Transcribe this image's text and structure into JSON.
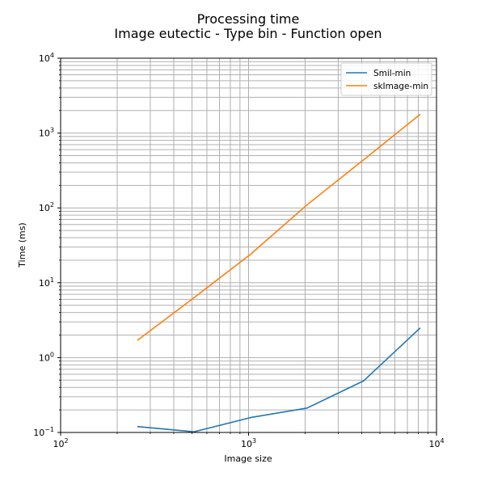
{
  "chart_data": {
    "type": "line",
    "title": "Processing time",
    "subtitle": "Image eutectic - Type bin - Function open",
    "xlabel": "Image size",
    "ylabel": "Time (ms)",
    "x_scale": "log",
    "y_scale": "log",
    "xlim": [
      100,
      10000
    ],
    "ylim": [
      0.1,
      10000
    ],
    "x_ticks": [
      {
        "value": 100,
        "base": "10",
        "exp": "2"
      },
      {
        "value": 1000,
        "base": "10",
        "exp": "3"
      },
      {
        "value": 10000,
        "base": "10",
        "exp": "4"
      }
    ],
    "y_ticks": [
      {
        "value": 0.1,
        "base": "10",
        "exp": "−1"
      },
      {
        "value": 1,
        "base": "10",
        "exp": "0"
      },
      {
        "value": 10,
        "base": "10",
        "exp": "1"
      },
      {
        "value": 100,
        "base": "10",
        "exp": "2"
      },
      {
        "value": 1000,
        "base": "10",
        "exp": "3"
      },
      {
        "value": 10000,
        "base": "10",
        "exp": "4"
      }
    ],
    "grid": true,
    "legend_position": "top-right",
    "series": [
      {
        "name": "Smil-min",
        "color": "#1f77b4",
        "x": [
          256,
          512,
          1024,
          2048,
          4096,
          8192
        ],
        "y": [
          0.12,
          0.102,
          0.158,
          0.212,
          0.49,
          2.5
        ]
      },
      {
        "name": "skImage-min",
        "color": "#ff7f0e",
        "x": [
          256,
          512,
          1024,
          2048,
          4096,
          8192
        ],
        "y": [
          1.7,
          6.3,
          24,
          110,
          440,
          1780
        ]
      }
    ]
  }
}
